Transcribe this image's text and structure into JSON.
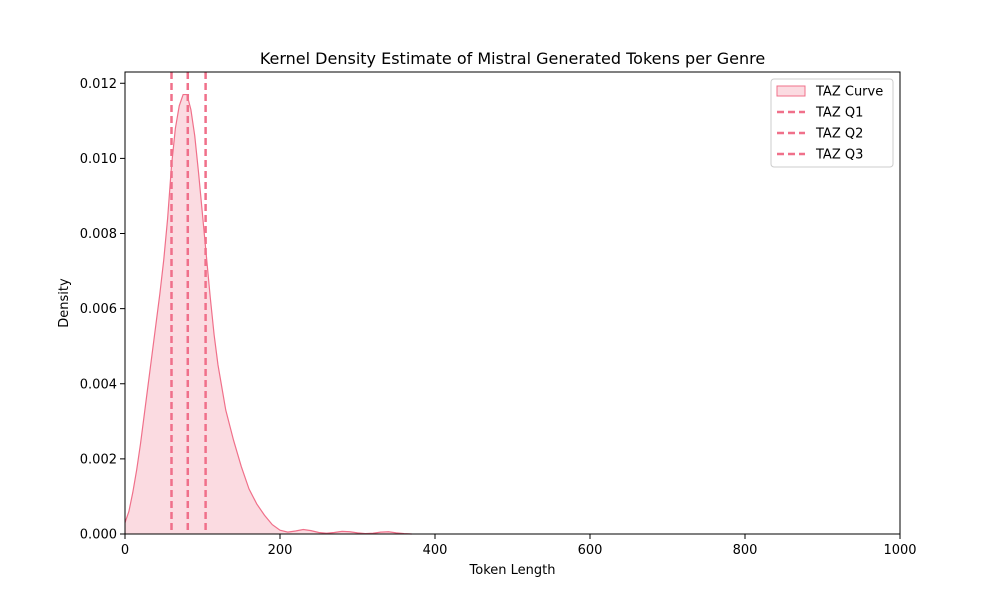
{
  "chart_data": {
    "type": "area",
    "title": "Kernel Density Estimate of Mistral Generated Tokens per Genre",
    "xlabel": "Token Length",
    "ylabel": "Density",
    "xlim": [
      0,
      1000
    ],
    "ylim": [
      0,
      0.0123
    ],
    "xticks": [
      0,
      200,
      400,
      600,
      800,
      1000
    ],
    "xtick_labels": [
      "0",
      "200",
      "400",
      "600",
      "800",
      "1000"
    ],
    "yticks": [
      0,
      0.002,
      0.004,
      0.006,
      0.008,
      0.01,
      0.012
    ],
    "ytick_labels": [
      "0.000",
      "0.002",
      "0.004",
      "0.006",
      "0.008",
      "0.010",
      "0.012"
    ],
    "grid": false,
    "legend_position": "top-right",
    "colors": {
      "curve": "#f0708a",
      "fill": "#fbdbe1",
      "quartile": "#f0708a"
    },
    "series": [
      {
        "name": "TAZ Curve",
        "x": [
          0,
          5,
          10,
          15,
          20,
          25,
          30,
          35,
          40,
          45,
          50,
          55,
          60,
          65,
          70,
          75,
          80,
          85,
          90,
          95,
          100,
          105,
          110,
          115,
          120,
          130,
          140,
          150,
          160,
          170,
          180,
          190,
          200,
          210,
          220,
          230,
          240,
          250,
          260,
          270,
          280,
          290,
          300,
          310,
          320,
          330,
          340,
          350,
          360,
          370
        ],
        "y": [
          0.0003,
          0.0006,
          0.0011,
          0.0017,
          0.0024,
          0.0032,
          0.004,
          0.0048,
          0.0056,
          0.0064,
          0.0073,
          0.0084,
          0.0098,
          0.0108,
          0.0114,
          0.0117,
          0.0117,
          0.0113,
          0.0106,
          0.0096,
          0.0085,
          0.0074,
          0.0063,
          0.0053,
          0.0045,
          0.0033,
          0.0025,
          0.0018,
          0.0012,
          0.0008,
          0.0005,
          0.00025,
          0.0001,
          5e-05,
          8e-05,
          0.00012,
          9e-05,
          4e-05,
          2e-05,
          4e-05,
          7e-05,
          6e-05,
          3e-05,
          1e-05,
          2e-05,
          5e-05,
          6e-05,
          3e-05,
          1e-05,
          0.0
        ]
      }
    ],
    "quartiles": [
      {
        "name": "TAZ Q1",
        "x": 60
      },
      {
        "name": "TAZ Q2",
        "x": 81
      },
      {
        "name": "TAZ Q3",
        "x": 104
      }
    ]
  }
}
